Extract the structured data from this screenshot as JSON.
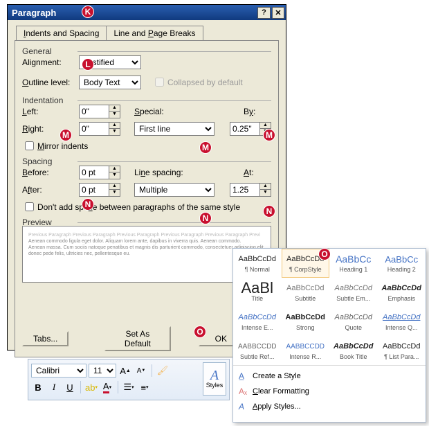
{
  "dialog": {
    "title": "Paragraph",
    "tabs": {
      "t1": "Indents and Spacing",
      "t2": "Line and Page Breaks"
    },
    "general": {
      "title": "General",
      "alignment_label": "Alignment:",
      "alignment_value": "Justified",
      "outline_label": "Outline level:",
      "outline_value": "Body Text",
      "collapsed_label": "Collapsed by default"
    },
    "indent": {
      "title": "Indentation",
      "left_label": "Left:",
      "left_value": "0\"",
      "right_label": "Right:",
      "right_value": "0\"",
      "special_label": "Special:",
      "special_value": "First line",
      "by_label": "By:",
      "by_value": "0.25\"",
      "mirror_label": "Mirror indents"
    },
    "spacing": {
      "title": "Spacing",
      "before_label": "Before:",
      "before_value": "0 pt",
      "after_label": "After:",
      "after_value": "0 pt",
      "ls_label": "Line spacing:",
      "ls_value": "Multiple",
      "at_label": "At:",
      "at_value": "1.25",
      "dont_add_label": "Don't add space between paragraphs of the same style"
    },
    "preview_label": "Preview",
    "preview_prev": "Previous Paragraph Previous Paragraph Previous Paragraph Previous Paragraph Previous Paragraph Previ",
    "preview_body1": "Aenean commodo ligula eget dolor. Aliquam lorem ante, dapibus in viverra quis. Aenean commodo.",
    "preview_body2": "Aenean massa. Cum sociis natoque penatibus et magnis dis parturient commodo, consectetuer adipiscing elit.",
    "preview_body3": "donec pede felis, ultricies nec, pellentesque eu.",
    "buttons": {
      "tabs": "Tabs...",
      "default": "Set As Default",
      "ok": "OK"
    }
  },
  "ribbon": {
    "font": "Calibri",
    "size": "11",
    "styles_label": "Styles"
  },
  "gallery": {
    "cells": [
      [
        {
          "preview": "AaBbCcDd",
          "name": "¶ Normal",
          "color": "#222",
          "size": "11px"
        },
        {
          "preview": "AaBbCcDd",
          "name": "¶ CorpStyle",
          "color": "#222",
          "size": "11px",
          "selected": true
        },
        {
          "preview": "AaBbCc",
          "name": "Heading 1",
          "color": "#4472c4",
          "size": "14px"
        },
        {
          "preview": "AaBbCc",
          "name": "Heading 2",
          "color": "#4472c4",
          "size": "13px"
        }
      ],
      [
        {
          "preview": "AaBl",
          "name": "Title",
          "color": "#222",
          "size": "22px"
        },
        {
          "preview": "AaBbCcDd",
          "name": "Subtitle",
          "color": "#777",
          "size": "11px"
        },
        {
          "preview": "AaBbCcDd",
          "name": "Subtle Em...",
          "color": "#777",
          "size": "11px",
          "italic": true
        },
        {
          "preview": "AaBbCcDd",
          "name": "Emphasis",
          "color": "#222",
          "size": "11px",
          "italic": true,
          "bold": true
        }
      ],
      [
        {
          "preview": "AaBbCcDd",
          "name": "Intense E...",
          "color": "#4472c4",
          "size": "11px",
          "italic": true
        },
        {
          "preview": "AaBbCcDd",
          "name": "Strong",
          "color": "#222",
          "size": "11px",
          "bold": true
        },
        {
          "preview": "AaBbCcDd",
          "name": "Quote",
          "color": "#666",
          "size": "11px",
          "italic": true
        },
        {
          "preview": "AaBbCcDd",
          "name": "Intense Q...",
          "color": "#4472c4",
          "size": "11px",
          "italic": true,
          "underline": true
        }
      ],
      [
        {
          "preview": "AABBCCDD",
          "name": "Subtle Ref...",
          "color": "#666",
          "size": "10px"
        },
        {
          "preview": "AABBCCDD",
          "name": "Intense R...",
          "color": "#4472c4",
          "size": "10px"
        },
        {
          "preview": "AaBbCcDd",
          "name": "Book Title",
          "color": "#222",
          "size": "11px",
          "italic": true,
          "bold": true
        },
        {
          "preview": "AaBbCcDd",
          "name": "¶ List Para...",
          "color": "#222",
          "size": "11px"
        }
      ]
    ],
    "menu": {
      "create": "Create a Style",
      "clear": "Clear Formatting",
      "apply": "Apply Styles..."
    }
  },
  "badges": {
    "K": "K",
    "L": "L",
    "M": "M",
    "N": "N",
    "O": "O"
  }
}
